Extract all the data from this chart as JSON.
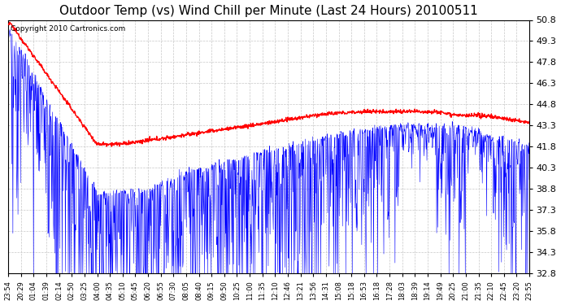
{
  "title": "Outdoor Temp (vs) Wind Chill per Minute (Last 24 Hours) 20100511",
  "copyright": "Copyright 2010 Cartronics.com",
  "y_min": 32.8,
  "y_max": 50.8,
  "y_ticks": [
    32.8,
    34.3,
    35.8,
    37.3,
    38.8,
    40.3,
    41.8,
    43.3,
    44.8,
    46.3,
    47.8,
    49.3,
    50.8
  ],
  "x_labels": [
    "23:54",
    "20:29",
    "01:04",
    "01:39",
    "02:14",
    "02:50",
    "03:25",
    "04:00",
    "04:35",
    "05:10",
    "05:45",
    "06:20",
    "06:55",
    "07:30",
    "08:05",
    "08:40",
    "09:15",
    "09:50",
    "10:25",
    "11:00",
    "11:35",
    "12:10",
    "12:46",
    "13:21",
    "13:56",
    "14:31",
    "15:08",
    "15:18",
    "16:53",
    "16:18",
    "17:28",
    "18:03",
    "18:39",
    "19:14",
    "19:49",
    "20:25",
    "21:00",
    "21:35",
    "22:10",
    "22:45",
    "23:20",
    "23:55"
  ],
  "background_color": "#ffffff",
  "plot_bg_color": "#ffffff",
  "grid_color": "#c8c8c8",
  "blue_color": "#0000ff",
  "red_color": "#ff0000",
  "title_fontsize": 11,
  "n_points": 1440,
  "figwidth": 6.9,
  "figheight": 3.75,
  "dpi": 100
}
